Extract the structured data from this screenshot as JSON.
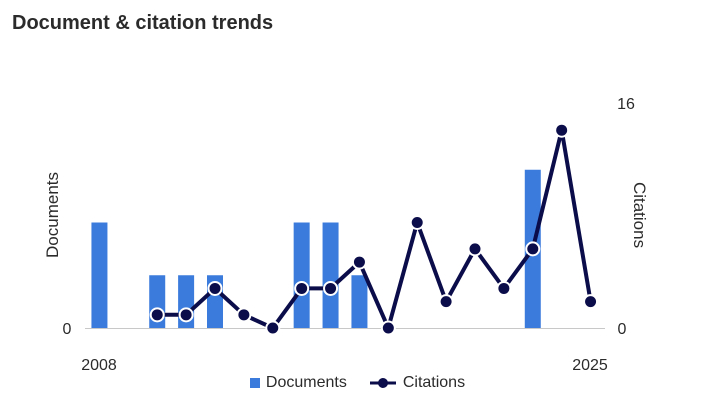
{
  "page": {
    "title": "Document & citation trends"
  },
  "chart_data": {
    "type": "bar+line",
    "title": "Document & citation trends",
    "x_tick_labels": [
      "2008",
      "2025"
    ],
    "x": [
      2008,
      2009,
      2010,
      2011,
      2012,
      2013,
      2014,
      2015,
      2016,
      2017,
      2018,
      2019,
      2020,
      2021,
      2022,
      2023,
      2024,
      2025
    ],
    "left_axis": {
      "label": "Documents",
      "ticks": [
        "0"
      ],
      "range": [
        0,
        4
      ]
    },
    "right_axis": {
      "label": "Citations",
      "ticks": [
        "0",
        "16"
      ],
      "range": [
        0,
        16
      ]
    },
    "series": [
      {
        "name": "Documents",
        "type": "bar",
        "axis": "left",
        "color": "#3a7bdc",
        "values": [
          2,
          0,
          1,
          1,
          1,
          0,
          0,
          2,
          2,
          1,
          0,
          0,
          0,
          0,
          0,
          3,
          0,
          0
        ]
      },
      {
        "name": "Citations",
        "type": "line",
        "axis": "right",
        "color": "#0b0c4a",
        "values": [
          null,
          null,
          1,
          1,
          3,
          1,
          0,
          3,
          3,
          5,
          0,
          8,
          2,
          6,
          3,
          6,
          15,
          2
        ]
      }
    ],
    "legend": [
      "Documents",
      "Citations"
    ],
    "legend_position": "bottom",
    "grid": false
  }
}
